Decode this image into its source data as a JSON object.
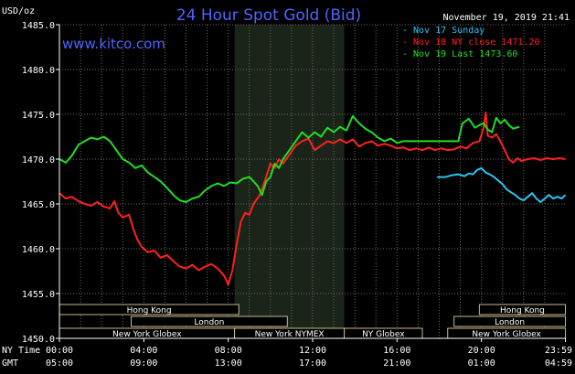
{
  "chart_data": {
    "type": "line",
    "title": "24 Hour Spot Gold (Bid)",
    "units_label": "USD/oz",
    "website": "www.kitco.com",
    "timestamp": "November 19, 2019 21:41",
    "ylim": [
      1450,
      1485
    ],
    "yticks": [
      {
        "v": 1450,
        "label": "1450.0"
      },
      {
        "v": 1455,
        "label": "1455.0"
      },
      {
        "v": 1460,
        "label": "1460.0"
      },
      {
        "v": 1465,
        "label": "1465.0"
      },
      {
        "v": 1470,
        "label": "1470.0"
      },
      {
        "v": 1475,
        "label": "1475.0"
      },
      {
        "v": 1480,
        "label": "1480.0"
      },
      {
        "v": 1485,
        "label": "1485.0"
      }
    ],
    "xlim": [
      0,
      24
    ],
    "xtick_rows": [
      {
        "name": "NY Time",
        "labels": [
          "00:00",
          "04:00",
          "08:00",
          "12:00",
          "16:00",
          "20:00",
          "23:59"
        ]
      },
      {
        "name": "GMT",
        "labels": [
          "05:00",
          "09:00",
          "13:00",
          "17:00",
          "21:00",
          "01:00",
          "04:59"
        ]
      }
    ],
    "xtick_positions": [
      0,
      4,
      8,
      12,
      16,
      20,
      23.98
    ],
    "shaded_region": [
      8.3,
      13.5
    ],
    "grid": true,
    "legend": [
      {
        "label": "Nov 17 Sunday",
        "color": "#29c4f0"
      },
      {
        "label": "Nov 18 NY close 1471.20",
        "color": "#ff2020"
      },
      {
        "label": "Nov 19 Last 1473.60",
        "color": "#22dd22"
      }
    ],
    "series": [
      {
        "name": "Nov 17 Sunday",
        "color": "#29c4f0",
        "points": [
          [
            17.9,
            1468.0
          ],
          [
            18.3,
            1468.0
          ],
          [
            18.6,
            1468.2
          ],
          [
            18.9,
            1468.3
          ],
          [
            19.2,
            1468.1
          ],
          [
            19.4,
            1468.4
          ],
          [
            19.6,
            1468.3
          ],
          [
            19.8,
            1468.8
          ],
          [
            20.0,
            1469.0
          ],
          [
            20.2,
            1468.5
          ],
          [
            20.4,
            1468.3
          ],
          [
            20.6,
            1468.0
          ],
          [
            20.8,
            1467.6
          ],
          [
            21.0,
            1467.2
          ],
          [
            21.2,
            1466.6
          ],
          [
            21.4,
            1466.3
          ],
          [
            21.6,
            1466.0
          ],
          [
            21.8,
            1465.6
          ],
          [
            22.0,
            1465.4
          ],
          [
            22.2,
            1465.8
          ],
          [
            22.4,
            1466.2
          ],
          [
            22.6,
            1465.6
          ],
          [
            22.8,
            1465.2
          ],
          [
            23.0,
            1465.6
          ],
          [
            23.2,
            1466.0
          ],
          [
            23.4,
            1465.6
          ],
          [
            23.6,
            1465.8
          ],
          [
            23.8,
            1465.6
          ],
          [
            23.98,
            1466.0
          ]
        ]
      },
      {
        "name": "Nov 18 NY close 1471.20",
        "color": "#ff2020",
        "points": [
          [
            0.0,
            1466.2
          ],
          [
            0.3,
            1465.6
          ],
          [
            0.6,
            1465.8
          ],
          [
            0.9,
            1465.3
          ],
          [
            1.2,
            1465.0
          ],
          [
            1.5,
            1464.8
          ],
          [
            1.8,
            1465.2
          ],
          [
            2.1,
            1464.7
          ],
          [
            2.4,
            1464.5
          ],
          [
            2.6,
            1465.3
          ],
          [
            2.8,
            1464.0
          ],
          [
            3.0,
            1463.5
          ],
          [
            3.3,
            1463.8
          ],
          [
            3.5,
            1462.2
          ],
          [
            3.7,
            1461.0
          ],
          [
            3.9,
            1460.2
          ],
          [
            4.2,
            1459.6
          ],
          [
            4.5,
            1459.8
          ],
          [
            4.8,
            1459.0
          ],
          [
            5.1,
            1459.3
          ],
          [
            5.4,
            1458.6
          ],
          [
            5.7,
            1458.0
          ],
          [
            6.0,
            1457.8
          ],
          [
            6.3,
            1458.2
          ],
          [
            6.6,
            1457.6
          ],
          [
            6.9,
            1458.0
          ],
          [
            7.2,
            1458.3
          ],
          [
            7.5,
            1457.8
          ],
          [
            7.8,
            1457.0
          ],
          [
            8.0,
            1456.0
          ],
          [
            8.2,
            1457.6
          ],
          [
            8.4,
            1460.5
          ],
          [
            8.6,
            1463.0
          ],
          [
            8.8,
            1464.0
          ],
          [
            9.0,
            1463.8
          ],
          [
            9.2,
            1465.0
          ],
          [
            9.5,
            1466.0
          ],
          [
            9.8,
            1468.0
          ],
          [
            10.0,
            1469.5
          ],
          [
            10.2,
            1469.0
          ],
          [
            10.4,
            1470.0
          ],
          [
            10.6,
            1469.5
          ],
          [
            10.9,
            1470.5
          ],
          [
            11.2,
            1471.5
          ],
          [
            11.5,
            1472.0
          ],
          [
            11.8,
            1472.3
          ],
          [
            12.1,
            1471.0
          ],
          [
            12.4,
            1471.5
          ],
          [
            12.7,
            1472.0
          ],
          [
            13.0,
            1471.8
          ],
          [
            13.3,
            1472.2
          ],
          [
            13.6,
            1471.8
          ],
          [
            13.9,
            1472.2
          ],
          [
            14.2,
            1471.4
          ],
          [
            14.5,
            1471.8
          ],
          [
            14.8,
            1472.0
          ],
          [
            15.1,
            1471.5
          ],
          [
            15.4,
            1471.7
          ],
          [
            15.7,
            1471.5
          ],
          [
            16.0,
            1471.2
          ],
          [
            16.3,
            1471.3
          ],
          [
            16.6,
            1471.0
          ],
          [
            16.9,
            1471.2
          ],
          [
            17.2,
            1471.0
          ],
          [
            17.5,
            1471.3
          ],
          [
            17.8,
            1471.0
          ],
          [
            18.1,
            1471.2
          ],
          [
            18.4,
            1471.0
          ],
          [
            18.7,
            1471.1
          ],
          [
            19.0,
            1471.4
          ],
          [
            19.3,
            1471.2
          ],
          [
            19.6,
            1471.8
          ],
          [
            19.9,
            1472.0
          ],
          [
            20.1,
            1473.5
          ],
          [
            20.2,
            1475.2
          ],
          [
            20.3,
            1472.6
          ],
          [
            20.5,
            1472.4
          ],
          [
            20.7,
            1472.8
          ],
          [
            20.9,
            1472.0
          ],
          [
            21.1,
            1471.0
          ],
          [
            21.3,
            1470.0
          ],
          [
            21.5,
            1469.6
          ],
          [
            21.7,
            1470.1
          ],
          [
            21.9,
            1469.8
          ],
          [
            22.2,
            1470.0
          ],
          [
            22.5,
            1470.1
          ],
          [
            22.8,
            1469.9
          ],
          [
            23.1,
            1470.1
          ],
          [
            23.4,
            1470.0
          ],
          [
            23.7,
            1470.1
          ],
          [
            23.98,
            1470.0
          ]
        ]
      },
      {
        "name": "Nov 19 Last 1473.60",
        "color": "#22dd22",
        "points": [
          [
            0.0,
            1470.0
          ],
          [
            0.3,
            1469.6
          ],
          [
            0.6,
            1470.4
          ],
          [
            0.9,
            1471.6
          ],
          [
            1.2,
            1472.0
          ],
          [
            1.5,
            1472.4
          ],
          [
            1.8,
            1472.2
          ],
          [
            2.1,
            1472.5
          ],
          [
            2.4,
            1472.0
          ],
          [
            2.7,
            1471.0
          ],
          [
            3.0,
            1470.0
          ],
          [
            3.3,
            1469.6
          ],
          [
            3.6,
            1469.0
          ],
          [
            3.9,
            1469.3
          ],
          [
            4.2,
            1468.5
          ],
          [
            4.5,
            1468.0
          ],
          [
            4.8,
            1467.5
          ],
          [
            5.1,
            1466.8
          ],
          [
            5.4,
            1466.0
          ],
          [
            5.7,
            1465.4
          ],
          [
            6.0,
            1465.2
          ],
          [
            6.3,
            1465.6
          ],
          [
            6.6,
            1465.8
          ],
          [
            6.9,
            1466.5
          ],
          [
            7.2,
            1467.0
          ],
          [
            7.5,
            1467.3
          ],
          [
            7.8,
            1467.0
          ],
          [
            8.1,
            1467.4
          ],
          [
            8.4,
            1467.3
          ],
          [
            8.7,
            1467.8
          ],
          [
            9.0,
            1468.0
          ],
          [
            9.2,
            1467.5
          ],
          [
            9.4,
            1467.0
          ],
          [
            9.6,
            1466.0
          ],
          [
            9.8,
            1467.5
          ],
          [
            10.0,
            1468.0
          ],
          [
            10.2,
            1469.5
          ],
          [
            10.4,
            1469.0
          ],
          [
            10.6,
            1470.0
          ],
          [
            10.9,
            1471.0
          ],
          [
            11.2,
            1472.0
          ],
          [
            11.5,
            1473.0
          ],
          [
            11.8,
            1472.4
          ],
          [
            12.1,
            1473.0
          ],
          [
            12.4,
            1472.5
          ],
          [
            12.7,
            1473.5
          ],
          [
            13.0,
            1473.0
          ],
          [
            13.3,
            1473.6
          ],
          [
            13.6,
            1473.2
          ],
          [
            13.9,
            1474.8
          ],
          [
            14.2,
            1474.0
          ],
          [
            14.5,
            1473.4
          ],
          [
            14.8,
            1473.0
          ],
          [
            15.1,
            1472.4
          ],
          [
            15.4,
            1472.0
          ],
          [
            15.7,
            1472.3
          ],
          [
            16.0,
            1471.8
          ],
          [
            16.3,
            1472.0
          ],
          [
            16.6,
            1472.0
          ],
          [
            17.0,
            1472.0
          ],
          [
            17.4,
            1472.0
          ],
          [
            17.8,
            1472.0
          ],
          [
            18.2,
            1472.0
          ],
          [
            18.6,
            1472.0
          ],
          [
            18.9,
            1472.0
          ],
          [
            19.1,
            1474.0
          ],
          [
            19.4,
            1474.5
          ],
          [
            19.7,
            1473.5
          ],
          [
            19.9,
            1473.8
          ],
          [
            20.1,
            1474.0
          ],
          [
            20.3,
            1473.3
          ],
          [
            20.5,
            1473.0
          ],
          [
            20.7,
            1474.6
          ],
          [
            20.9,
            1474.0
          ],
          [
            21.1,
            1474.4
          ],
          [
            21.3,
            1473.8
          ],
          [
            21.5,
            1473.4
          ],
          [
            21.8,
            1473.6
          ]
        ]
      }
    ],
    "sessions": [
      {
        "name": "Hong Kong",
        "start": 0,
        "end": 8.5,
        "row": 0
      },
      {
        "name": "London",
        "start": 3.4,
        "end": 10.8,
        "row": 1
      },
      {
        "name": "New York Globex",
        "start": 0,
        "end": 8.3,
        "row": 2
      },
      {
        "name": "New York NYMEX",
        "start": 8.3,
        "end": 13.5,
        "row": 2
      },
      {
        "name": "NY Globex",
        "start": 13.5,
        "end": 17.2,
        "row": 2
      },
      {
        "name": "Hong Kong",
        "start": 19.9,
        "end": 23.98,
        "row": 0
      },
      {
        "name": "London",
        "start": 18.7,
        "end": 23.98,
        "row": 1
      },
      {
        "name": "New York Globex",
        "start": 18.4,
        "end": 23.98,
        "row": 2
      }
    ]
  }
}
